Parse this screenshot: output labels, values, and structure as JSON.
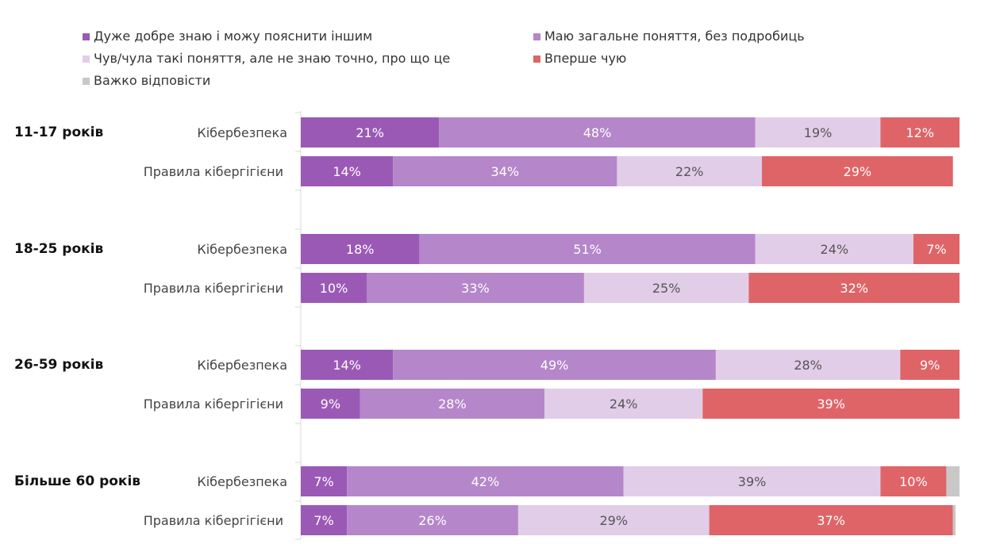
{
  "chart_data": {
    "type": "bar",
    "orientation": "horizontal",
    "stacked": true,
    "percent": true,
    "title": "",
    "xlim": [
      0,
      100
    ],
    "grid": false,
    "legend_position": "top",
    "series": [
      {
        "name": "Дуже добре знаю і можу пояснити іншим",
        "color": "#9b59b6"
      },
      {
        "name": "Маю загальне поняття, без подробиць",
        "color": "#b586c9"
      },
      {
        "name": "Чув/чула такі поняття, але не знаю точно, про що це",
        "color": "#e2cde8"
      },
      {
        "name": "Вперше чую",
        "color": "#df6468"
      },
      {
        "name": "Важко відповісти",
        "color": "#c8c8c8"
      }
    ],
    "groups": [
      {
        "label": "11-17 років",
        "rows": [
          {
            "label": "Кібербезпека",
            "values": [
              21,
              48,
              19,
              12,
              0
            ],
            "labels": [
              "21%",
              "48%",
              "19%",
              "12%",
              ""
            ]
          },
          {
            "label": "Правила кібергігієни",
            "values": [
              14,
              34,
              22,
              29,
              0
            ],
            "labels": [
              "14%",
              "34%",
              "22%",
              "29%",
              ""
            ]
          }
        ]
      },
      {
        "label": "18-25 років",
        "rows": [
          {
            "label": "Кібербезпека",
            "values": [
              18,
              51,
              24,
              7,
              0
            ],
            "labels": [
              "18%",
              "51%",
              "24%",
              "7%",
              ""
            ]
          },
          {
            "label": "Правила кібергігієни",
            "values": [
              10,
              33,
              25,
              32,
              0
            ],
            "labels": [
              "10%",
              "33%",
              "25%",
              "32%",
              ""
            ]
          }
        ]
      },
      {
        "label": "26-59 років",
        "rows": [
          {
            "label": "Кібербезпека",
            "values": [
              14,
              49,
              28,
              9,
              0
            ],
            "labels": [
              "14%",
              "49%",
              "28%",
              "9%",
              ""
            ]
          },
          {
            "label": "Правила кібергігієни",
            "values": [
              9,
              28,
              24,
              39,
              0
            ],
            "labels": [
              "9%",
              "28%",
              "24%",
              "39%",
              ""
            ]
          }
        ]
      },
      {
        "label": "Більше 60 років",
        "rows": [
          {
            "label": "Кібербезпека",
            "values": [
              7,
              42,
              39,
              10,
              2
            ],
            "labels": [
              "7%",
              "42%",
              "39%",
              "10%",
              ""
            ]
          },
          {
            "label": "Правила кібергігієни",
            "values": [
              7,
              26,
              29,
              37,
              0.4
            ],
            "labels": [
              "7%",
              "26%",
              "29%",
              "37%",
              ""
            ]
          }
        ]
      }
    ]
  }
}
